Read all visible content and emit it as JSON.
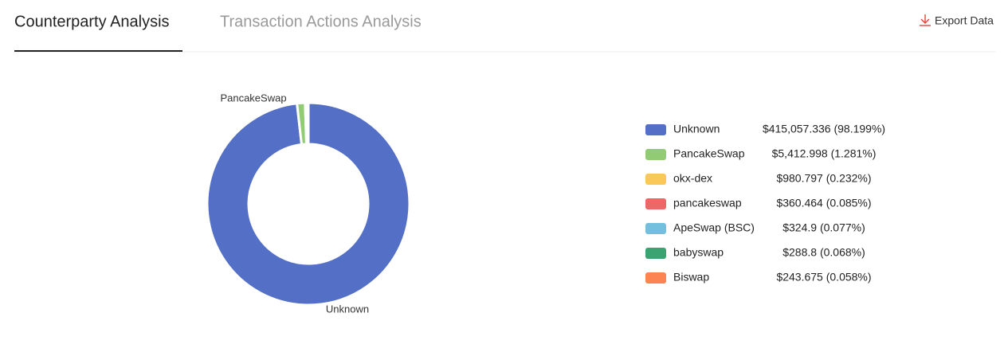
{
  "tabs": [
    "Counterparty Analysis",
    "Transaction Actions Analysis"
  ],
  "export_button": "Export Data",
  "chart_data": {
    "type": "pie",
    "categories": [
      "Unknown",
      "PancakeSwap",
      "okx-dex",
      "pancakeswap",
      "ApeSwap (BSC)",
      "babyswap",
      "Biswap"
    ],
    "values": [
      415057.336,
      5412.998,
      980.797,
      360.464,
      324.9,
      288.8,
      243.675
    ],
    "value_labels": [
      "$415,057.336 (98.199%)",
      "$5,412.998 (1.281%)",
      "$980.797 (0.232%)",
      "$360.464 (0.085%)",
      "$324.9 (0.077%)",
      "$288.8 (0.068%)",
      "$243.675 (0.058%)"
    ],
    "colors": [
      "#5470c6",
      "#91cc75",
      "#fac858",
      "#ee6666",
      "#73c0de",
      "#3ba272",
      "#fc8452"
    ],
    "legend": "right"
  }
}
